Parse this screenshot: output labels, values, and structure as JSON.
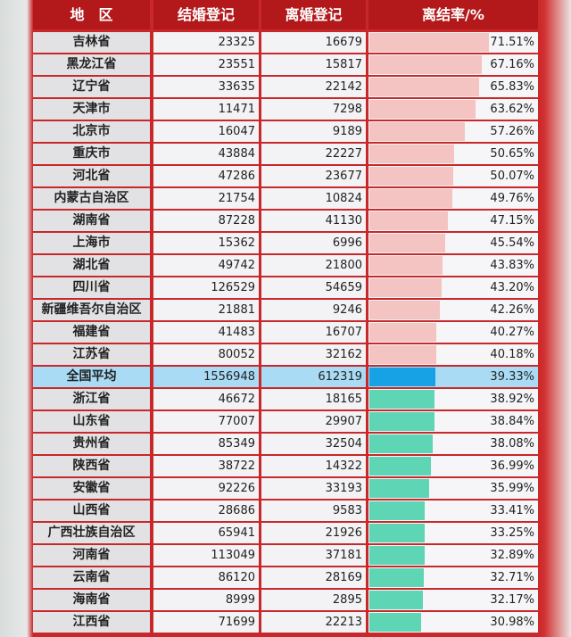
{
  "header": [
    "地　区",
    "结婚登记",
    "离婚登记",
    "离结率/%"
  ],
  "average_row": 15,
  "rows": [
    {
      "region": "吉林省",
      "marriages": 23325,
      "divorces": 16679,
      "rate": {
        "value": 71.51,
        "label": "71.51%"
      }
    },
    {
      "region": "黑龙江省",
      "marriages": 23551,
      "divorces": 15817,
      "rate": {
        "value": 67.16,
        "label": "67.16%"
      }
    },
    {
      "region": "辽宁省",
      "marriages": 33635,
      "divorces": 22142,
      "rate": {
        "value": 65.83,
        "label": "65.83%"
      }
    },
    {
      "region": "天津市",
      "marriages": 11471,
      "divorces": 7298,
      "rate": {
        "value": 63.62,
        "label": "63.62%"
      }
    },
    {
      "region": "北京市",
      "marriages": 16047,
      "divorces": 9189,
      "rate": {
        "value": 57.26,
        "label": "57.26%"
      }
    },
    {
      "region": "重庆市",
      "marriages": 43884,
      "divorces": 22227,
      "rate": {
        "value": 50.65,
        "label": "50.65%"
      }
    },
    {
      "region": "河北省",
      "marriages": 47286,
      "divorces": 23677,
      "rate": {
        "value": 50.07,
        "label": "50.07%"
      }
    },
    {
      "region": "内蒙古自治区",
      "marriages": 21754,
      "divorces": 10824,
      "rate": {
        "value": 49.76,
        "label": "49.76%"
      }
    },
    {
      "region": "湖南省",
      "marriages": 87228,
      "divorces": 41130,
      "rate": {
        "value": 47.15,
        "label": "47.15%"
      }
    },
    {
      "region": "上海市",
      "marriages": 15362,
      "divorces": 6996,
      "rate": {
        "value": 45.54,
        "label": "45.54%"
      }
    },
    {
      "region": "湖北省",
      "marriages": 49742,
      "divorces": 21800,
      "rate": {
        "value": 43.83,
        "label": "43.83%"
      }
    },
    {
      "region": "四川省",
      "marriages": 126529,
      "divorces": 54659,
      "rate": {
        "value": 43.2,
        "label": "43.20%"
      }
    },
    {
      "region": "新疆维吾尔自治区",
      "marriages": 21881,
      "divorces": 9246,
      "rate": {
        "value": 42.26,
        "label": "42.26%"
      }
    },
    {
      "region": "福建省",
      "marriages": 41483,
      "divorces": 16707,
      "rate": {
        "value": 40.27,
        "label": "40.27%"
      }
    },
    {
      "region": "江苏省",
      "marriages": 80052,
      "divorces": 32162,
      "rate": {
        "value": 40.18,
        "label": "40.18%"
      }
    },
    {
      "region": "全国平均",
      "marriages": 1556948,
      "divorces": 612319,
      "rate": {
        "value": 39.33,
        "label": "39.33%"
      }
    },
    {
      "region": "浙江省",
      "marriages": 46672,
      "divorces": 18165,
      "rate": {
        "value": 38.92,
        "label": "38.92%"
      }
    },
    {
      "region": "山东省",
      "marriages": 77007,
      "divorces": 29907,
      "rate": {
        "value": 38.84,
        "label": "38.84%"
      }
    },
    {
      "region": "贵州省",
      "marriages": 85349,
      "divorces": 32504,
      "rate": {
        "value": 38.08,
        "label": "38.08%"
      }
    },
    {
      "region": "陕西省",
      "marriages": 38722,
      "divorces": 14322,
      "rate": {
        "value": 36.99,
        "label": "36.99%"
      }
    },
    {
      "region": "安徽省",
      "marriages": 92226,
      "divorces": 33193,
      "rate": {
        "value": 35.99,
        "label": "35.99%"
      }
    },
    {
      "region": "山西省",
      "marriages": 28686,
      "divorces": 9583,
      "rate": {
        "value": 33.41,
        "label": "33.41%"
      }
    },
    {
      "region": "广西壮族自治区",
      "marriages": 65941,
      "divorces": 21926,
      "rate": {
        "value": 33.25,
        "label": "33.25%"
      }
    },
    {
      "region": "河南省",
      "marriages": 113049,
      "divorces": 37181,
      "rate": {
        "value": 32.89,
        "label": "32.89%"
      }
    },
    {
      "region": "云南省",
      "marriages": 86120,
      "divorces": 28169,
      "rate": {
        "value": 32.71,
        "label": "32.71%"
      }
    },
    {
      "region": "海南省",
      "marriages": 8999,
      "divorces": 2895,
      "rate": {
        "value": 32.17,
        "label": "32.17%"
      }
    },
    {
      "region": "江西省",
      "marriages": 71699,
      "divorces": 22213,
      "rate": {
        "value": 30.98,
        "label": "30.98%"
      }
    }
  ]
}
